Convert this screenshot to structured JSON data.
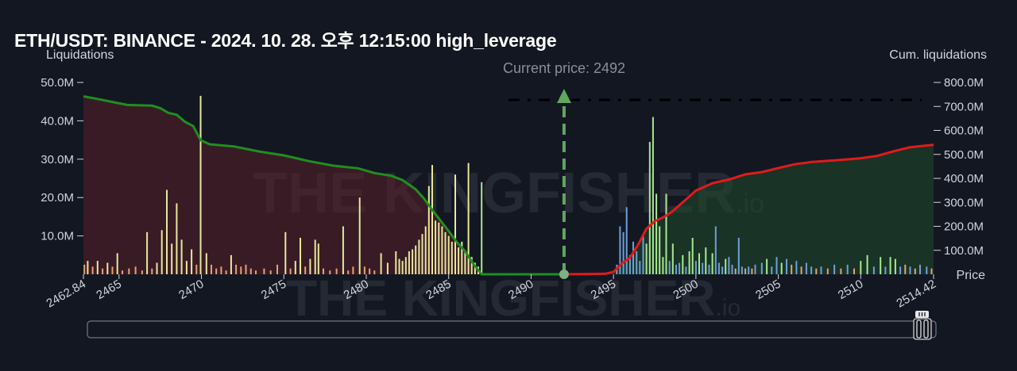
{
  "title": "ETH/USDT: BINANCE - 2024. 10. 28. 오후 12:15:00 high_leverage",
  "watermark": "THE KINGFISHER.io",
  "colors": {
    "background": "#131722",
    "cum_short": "#e01b1b",
    "cum_long": "#1f8f1f",
    "current_price_line": "#5fa85f",
    "bar_yellow": "#e8e89a",
    "bar_green": "#a8e890",
    "bar_blue": "#6f9fd8",
    "bar_orange": "#e8a070"
  },
  "chart_data": {
    "type": "bar",
    "title": "ETH/USDT: BINANCE - 2024. 10. 28. 오후 12:15:00 high_leverage",
    "xlabel": "Price",
    "ylabel_left": "Liquidations",
    "ylabel_right": "Cum. liquidations",
    "current_price_label": "Current price: 2492",
    "current_price": 2492,
    "xlim": [
      2462.84,
      2514.42
    ],
    "x_ticks": [
      "2462.84",
      "2465",
      "2470",
      "2475",
      "2480",
      "2485",
      "2490",
      "2495",
      "2500",
      "2505",
      "2510",
      "2514.42"
    ],
    "y_left_ticks": [
      "10.0M",
      "20.0M",
      "30.0M",
      "40.0M",
      "50.0M"
    ],
    "y_left_range": [
      0,
      50000000
    ],
    "y_right_ticks": [
      "100.0M",
      "200.0M",
      "300.0M",
      "400.0M",
      "500.0M",
      "600.0M",
      "700.0M",
      "800.0M"
    ],
    "y_right_range": [
      0,
      800000000
    ],
    "bars": [
      {
        "price": 2462.9,
        "value": 2.5,
        "color": "orange"
      },
      {
        "price": 2463.1,
        "value": 3.5,
        "color": "yellow"
      },
      {
        "price": 2463.4,
        "value": 2.0,
        "color": "orange"
      },
      {
        "price": 2463.7,
        "value": 3.5,
        "color": "yellow"
      },
      {
        "price": 2464.0,
        "value": 1.5,
        "color": "orange"
      },
      {
        "price": 2464.3,
        "value": 3.0,
        "color": "yellow"
      },
      {
        "price": 2464.6,
        "value": 2.0,
        "color": "orange"
      },
      {
        "price": 2464.9,
        "value": 5.5,
        "color": "yellow"
      },
      {
        "price": 2465.2,
        "value": 1.0,
        "color": "orange"
      },
      {
        "price": 2465.6,
        "value": 1.5,
        "color": "orange"
      },
      {
        "price": 2466.0,
        "value": 2.0,
        "color": "orange"
      },
      {
        "price": 2466.4,
        "value": 1.0,
        "color": "orange"
      },
      {
        "price": 2466.7,
        "value": 11.0,
        "color": "yellow"
      },
      {
        "price": 2467.0,
        "value": 1.5,
        "color": "orange"
      },
      {
        "price": 2467.3,
        "value": 3.0,
        "color": "yellow"
      },
      {
        "price": 2467.6,
        "value": 11.5,
        "color": "yellow"
      },
      {
        "price": 2467.9,
        "value": 22.0,
        "color": "yellow"
      },
      {
        "price": 2468.2,
        "value": 8.0,
        "color": "yellow"
      },
      {
        "price": 2468.5,
        "value": 18.5,
        "color": "yellow"
      },
      {
        "price": 2468.8,
        "value": 9.0,
        "color": "yellow"
      },
      {
        "price": 2469.1,
        "value": 3.5,
        "color": "yellow"
      },
      {
        "price": 2469.4,
        "value": 6.5,
        "color": "yellow"
      },
      {
        "price": 2469.7,
        "value": 2.5,
        "color": "orange"
      },
      {
        "price": 2469.95,
        "value": 46.5,
        "color": "yellow"
      },
      {
        "price": 2470.3,
        "value": 5.5,
        "color": "yellow"
      },
      {
        "price": 2470.6,
        "value": 2.5,
        "color": "orange"
      },
      {
        "price": 2470.9,
        "value": 1.5,
        "color": "orange"
      },
      {
        "price": 2471.2,
        "value": 2.0,
        "color": "orange"
      },
      {
        "price": 2471.5,
        "value": 1.0,
        "color": "orange"
      },
      {
        "price": 2471.8,
        "value": 5.0,
        "color": "yellow"
      },
      {
        "price": 2472.1,
        "value": 2.5,
        "color": "orange"
      },
      {
        "price": 2472.4,
        "value": 2.0,
        "color": "orange"
      },
      {
        "price": 2472.7,
        "value": 2.5,
        "color": "orange"
      },
      {
        "price": 2473.0,
        "value": 1.5,
        "color": "orange"
      },
      {
        "price": 2473.3,
        "value": 1.0,
        "color": "orange"
      },
      {
        "price": 2473.8,
        "value": 1.5,
        "color": "orange"
      },
      {
        "price": 2474.2,
        "value": 1.0,
        "color": "orange"
      },
      {
        "price": 2474.6,
        "value": 2.5,
        "color": "orange"
      },
      {
        "price": 2475.1,
        "value": 11.0,
        "color": "yellow"
      },
      {
        "price": 2475.4,
        "value": 1.5,
        "color": "orange"
      },
      {
        "price": 2475.7,
        "value": 3.5,
        "color": "yellow"
      },
      {
        "price": 2476.0,
        "value": 9.5,
        "color": "yellow"
      },
      {
        "price": 2476.3,
        "value": 2.0,
        "color": "orange"
      },
      {
        "price": 2476.6,
        "value": 4.0,
        "color": "yellow"
      },
      {
        "price": 2476.9,
        "value": 9.0,
        "color": "yellow"
      },
      {
        "price": 2477.1,
        "value": 8.0,
        "color": "yellow"
      },
      {
        "price": 2477.4,
        "value": 1.5,
        "color": "orange"
      },
      {
        "price": 2477.8,
        "value": 1.0,
        "color": "orange"
      },
      {
        "price": 2478.2,
        "value": 1.5,
        "color": "orange"
      },
      {
        "price": 2478.6,
        "value": 12.5,
        "color": "yellow"
      },
      {
        "price": 2478.9,
        "value": 1.0,
        "color": "orange"
      },
      {
        "price": 2479.2,
        "value": 2.0,
        "color": "orange"
      },
      {
        "price": 2479.6,
        "value": 20.0,
        "color": "yellow"
      },
      {
        "price": 2479.9,
        "value": 2.0,
        "color": "orange"
      },
      {
        "price": 2480.2,
        "value": 1.5,
        "color": "orange"
      },
      {
        "price": 2480.5,
        "value": 1.0,
        "color": "orange"
      },
      {
        "price": 2480.9,
        "value": 5.5,
        "color": "yellow"
      },
      {
        "price": 2481.3,
        "value": 3.0,
        "color": "yellow"
      },
      {
        "price": 2481.8,
        "value": 6.0,
        "color": "yellow"
      },
      {
        "price": 2482.0,
        "value": 4.0,
        "color": "yellow"
      },
      {
        "price": 2482.2,
        "value": 3.5,
        "color": "yellow"
      },
      {
        "price": 2482.4,
        "value": 4.5,
        "color": "yellow"
      },
      {
        "price": 2482.6,
        "value": 6.0,
        "color": "yellow"
      },
      {
        "price": 2482.8,
        "value": 6.5,
        "color": "yellow"
      },
      {
        "price": 2483.0,
        "value": 7.5,
        "color": "yellow"
      },
      {
        "price": 2483.2,
        "value": 9.0,
        "color": "yellow"
      },
      {
        "price": 2483.4,
        "value": 10.5,
        "color": "yellow"
      },
      {
        "price": 2483.6,
        "value": 12.5,
        "color": "yellow"
      },
      {
        "price": 2483.8,
        "value": 23.0,
        "color": "yellow"
      },
      {
        "price": 2484.0,
        "value": 28.5,
        "color": "yellow"
      },
      {
        "price": 2484.2,
        "value": 14.0,
        "color": "yellow"
      },
      {
        "price": 2484.4,
        "value": 13.5,
        "color": "yellow"
      },
      {
        "price": 2484.6,
        "value": 12.5,
        "color": "yellow"
      },
      {
        "price": 2484.8,
        "value": 11.0,
        "color": "yellow"
      },
      {
        "price": 2485.0,
        "value": 10.0,
        "color": "yellow"
      },
      {
        "price": 2485.2,
        "value": 8.5,
        "color": "yellow"
      },
      {
        "price": 2485.4,
        "value": 26.0,
        "color": "yellow"
      },
      {
        "price": 2485.6,
        "value": 7.0,
        "color": "yellow"
      },
      {
        "price": 2485.8,
        "value": 8.5,
        "color": "yellow"
      },
      {
        "price": 2486.0,
        "value": 6.0,
        "color": "yellow"
      },
      {
        "price": 2486.2,
        "value": 29.0,
        "color": "yellow"
      },
      {
        "price": 2486.4,
        "value": 4.5,
        "color": "yellow"
      },
      {
        "price": 2486.6,
        "value": 3.0,
        "color": "yellow"
      },
      {
        "price": 2486.8,
        "value": 2.0,
        "color": "yellow"
      },
      {
        "price": 2487.0,
        "value": 24.0,
        "color": "green"
      },
      {
        "price": 2495.2,
        "value": 2.5,
        "color": "blue"
      },
      {
        "price": 2495.4,
        "value": 12.5,
        "color": "blue"
      },
      {
        "price": 2495.6,
        "value": 11.0,
        "color": "blue"
      },
      {
        "price": 2495.8,
        "value": 17.5,
        "color": "blue"
      },
      {
        "price": 2496.0,
        "value": 5.0,
        "color": "blue"
      },
      {
        "price": 2496.2,
        "value": 8.5,
        "color": "blue"
      },
      {
        "price": 2496.4,
        "value": 6.0,
        "color": "blue"
      },
      {
        "price": 2496.6,
        "value": 3.5,
        "color": "blue"
      },
      {
        "price": 2496.8,
        "value": 10.5,
        "color": "blue"
      },
      {
        "price": 2497.0,
        "value": 8.0,
        "color": "green"
      },
      {
        "price": 2497.2,
        "value": 34.5,
        "color": "green"
      },
      {
        "price": 2497.4,
        "value": 41.0,
        "color": "green"
      },
      {
        "price": 2497.6,
        "value": 21.0,
        "color": "green"
      },
      {
        "price": 2497.8,
        "value": 12.5,
        "color": "green"
      },
      {
        "price": 2498.0,
        "value": 4.5,
        "color": "green"
      },
      {
        "price": 2498.2,
        "value": 21.0,
        "color": "green"
      },
      {
        "price": 2498.4,
        "value": 3.5,
        "color": "blue"
      },
      {
        "price": 2498.6,
        "value": 8.0,
        "color": "green"
      },
      {
        "price": 2498.8,
        "value": 2.5,
        "color": "blue"
      },
      {
        "price": 2499.0,
        "value": 3.0,
        "color": "blue"
      },
      {
        "price": 2499.2,
        "value": 5.0,
        "color": "green"
      },
      {
        "price": 2499.4,
        "value": 2.0,
        "color": "blue"
      },
      {
        "price": 2499.6,
        "value": 6.0,
        "color": "green"
      },
      {
        "price": 2499.8,
        "value": 9.5,
        "color": "green"
      },
      {
        "price": 2500.0,
        "value": 3.5,
        "color": "blue"
      },
      {
        "price": 2500.2,
        "value": 5.5,
        "color": "green"
      },
      {
        "price": 2500.4,
        "value": 3.0,
        "color": "blue"
      },
      {
        "price": 2500.6,
        "value": 7.0,
        "color": "green"
      },
      {
        "price": 2500.8,
        "value": 2.5,
        "color": "blue"
      },
      {
        "price": 2501.0,
        "value": 5.5,
        "color": "green"
      },
      {
        "price": 2501.2,
        "value": 12.5,
        "color": "blue"
      },
      {
        "price": 2501.4,
        "value": 3.0,
        "color": "blue"
      },
      {
        "price": 2501.6,
        "value": 2.0,
        "color": "blue"
      },
      {
        "price": 2501.8,
        "value": 4.0,
        "color": "green"
      },
      {
        "price": 2502.0,
        "value": 4.5,
        "color": "blue"
      },
      {
        "price": 2502.2,
        "value": 2.5,
        "color": "blue"
      },
      {
        "price": 2502.4,
        "value": 1.5,
        "color": "orange"
      },
      {
        "price": 2502.6,
        "value": 9.5,
        "color": "blue"
      },
      {
        "price": 2502.8,
        "value": 2.0,
        "color": "blue"
      },
      {
        "price": 2503.0,
        "value": 1.5,
        "color": "orange"
      },
      {
        "price": 2503.2,
        "value": 2.0,
        "color": "blue"
      },
      {
        "price": 2503.4,
        "value": 1.5,
        "color": "orange"
      },
      {
        "price": 2503.6,
        "value": 2.5,
        "color": "blue"
      },
      {
        "price": 2504.0,
        "value": 3.0,
        "color": "blue"
      },
      {
        "price": 2504.3,
        "value": 4.0,
        "color": "green"
      },
      {
        "price": 2504.6,
        "value": 2.0,
        "color": "blue"
      },
      {
        "price": 2504.9,
        "value": 4.5,
        "color": "blue"
      },
      {
        "price": 2505.2,
        "value": 3.0,
        "color": "green"
      },
      {
        "price": 2505.5,
        "value": 4.0,
        "color": "blue"
      },
      {
        "price": 2505.8,
        "value": 2.5,
        "color": "orange"
      },
      {
        "price": 2506.1,
        "value": 3.5,
        "color": "blue"
      },
      {
        "price": 2506.4,
        "value": 2.0,
        "color": "orange"
      },
      {
        "price": 2506.7,
        "value": 3.0,
        "color": "blue"
      },
      {
        "price": 2507.0,
        "value": 2.0,
        "color": "blue"
      },
      {
        "price": 2507.3,
        "value": 1.5,
        "color": "orange"
      },
      {
        "price": 2507.6,
        "value": 2.0,
        "color": "blue"
      },
      {
        "price": 2508.0,
        "value": 1.5,
        "color": "orange"
      },
      {
        "price": 2508.4,
        "value": 2.5,
        "color": "blue"
      },
      {
        "price": 2508.8,
        "value": 1.5,
        "color": "orange"
      },
      {
        "price": 2509.2,
        "value": 2.5,
        "color": "blue"
      },
      {
        "price": 2509.6,
        "value": 1.5,
        "color": "orange"
      },
      {
        "price": 2510.0,
        "value": 3.5,
        "color": "green"
      },
      {
        "price": 2510.4,
        "value": 5.0,
        "color": "green"
      },
      {
        "price": 2510.8,
        "value": 2.0,
        "color": "blue"
      },
      {
        "price": 2511.2,
        "value": 4.5,
        "color": "green"
      },
      {
        "price": 2511.5,
        "value": 2.0,
        "color": "blue"
      },
      {
        "price": 2511.8,
        "value": 4.5,
        "color": "green"
      },
      {
        "price": 2512.1,
        "value": 4.0,
        "color": "green"
      },
      {
        "price": 2512.4,
        "value": 2.0,
        "color": "blue"
      },
      {
        "price": 2512.7,
        "value": 2.5,
        "color": "orange"
      },
      {
        "price": 2513.0,
        "value": 2.0,
        "color": "blue"
      },
      {
        "price": 2513.3,
        "value": 1.5,
        "color": "orange"
      },
      {
        "price": 2513.6,
        "value": 2.5,
        "color": "blue"
      },
      {
        "price": 2514.0,
        "value": 2.0,
        "color": "blue"
      },
      {
        "price": 2514.3,
        "value": 1.5,
        "color": "orange"
      }
    ],
    "cum_long_series": {
      "name": "",
      "x": [
        2462.84,
        2464.0,
        2465.5,
        2467.0,
        2467.5,
        2468.0,
        2468.5,
        2469.0,
        2469.5,
        2469.95,
        2470.5,
        2472.0,
        2473.5,
        2475.0,
        2476.5,
        2478.0,
        2479.5,
        2480.5,
        2481.5,
        2482.2,
        2483.0,
        2483.5,
        2484.0,
        2484.5,
        2485.0,
        2485.5,
        2486.0,
        2486.5,
        2487.0,
        2492.0
      ],
      "y": [
        742,
        727,
        706,
        703,
        693,
        673,
        665,
        636,
        618,
        559,
        542,
        533,
        512,
        496,
        472,
        453,
        442,
        422,
        411,
        393,
        354,
        316,
        268,
        224,
        180,
        134,
        96,
        43,
        0,
        0
      ]
    },
    "cum_short_series": {
      "name": "",
      "x": [
        2492.0,
        2494.5,
        2495.0,
        2495.5,
        2496.0,
        2496.5,
        2497.0,
        2497.5,
        2498.0,
        2498.5,
        2499.0,
        2499.5,
        2500.0,
        2500.5,
        2501.0,
        2502.0,
        2503.0,
        2504.0,
        2505.0,
        2506.0,
        2507.0,
        2508.0,
        2509.0,
        2510.0,
        2511.0,
        2512.0,
        2513.0,
        2514.42
      ],
      "y": [
        0,
        2,
        10,
        45,
        69,
        124,
        190,
        221,
        237,
        258,
        288,
        318,
        349,
        364,
        380,
        395,
        417,
        426,
        443,
        459,
        468,
        473,
        478,
        484,
        494,
        513,
        530,
        540
      ]
    },
    "grid": false,
    "legend": "none"
  },
  "scrollbar": {
    "handle_icon": "grip-icon"
  }
}
